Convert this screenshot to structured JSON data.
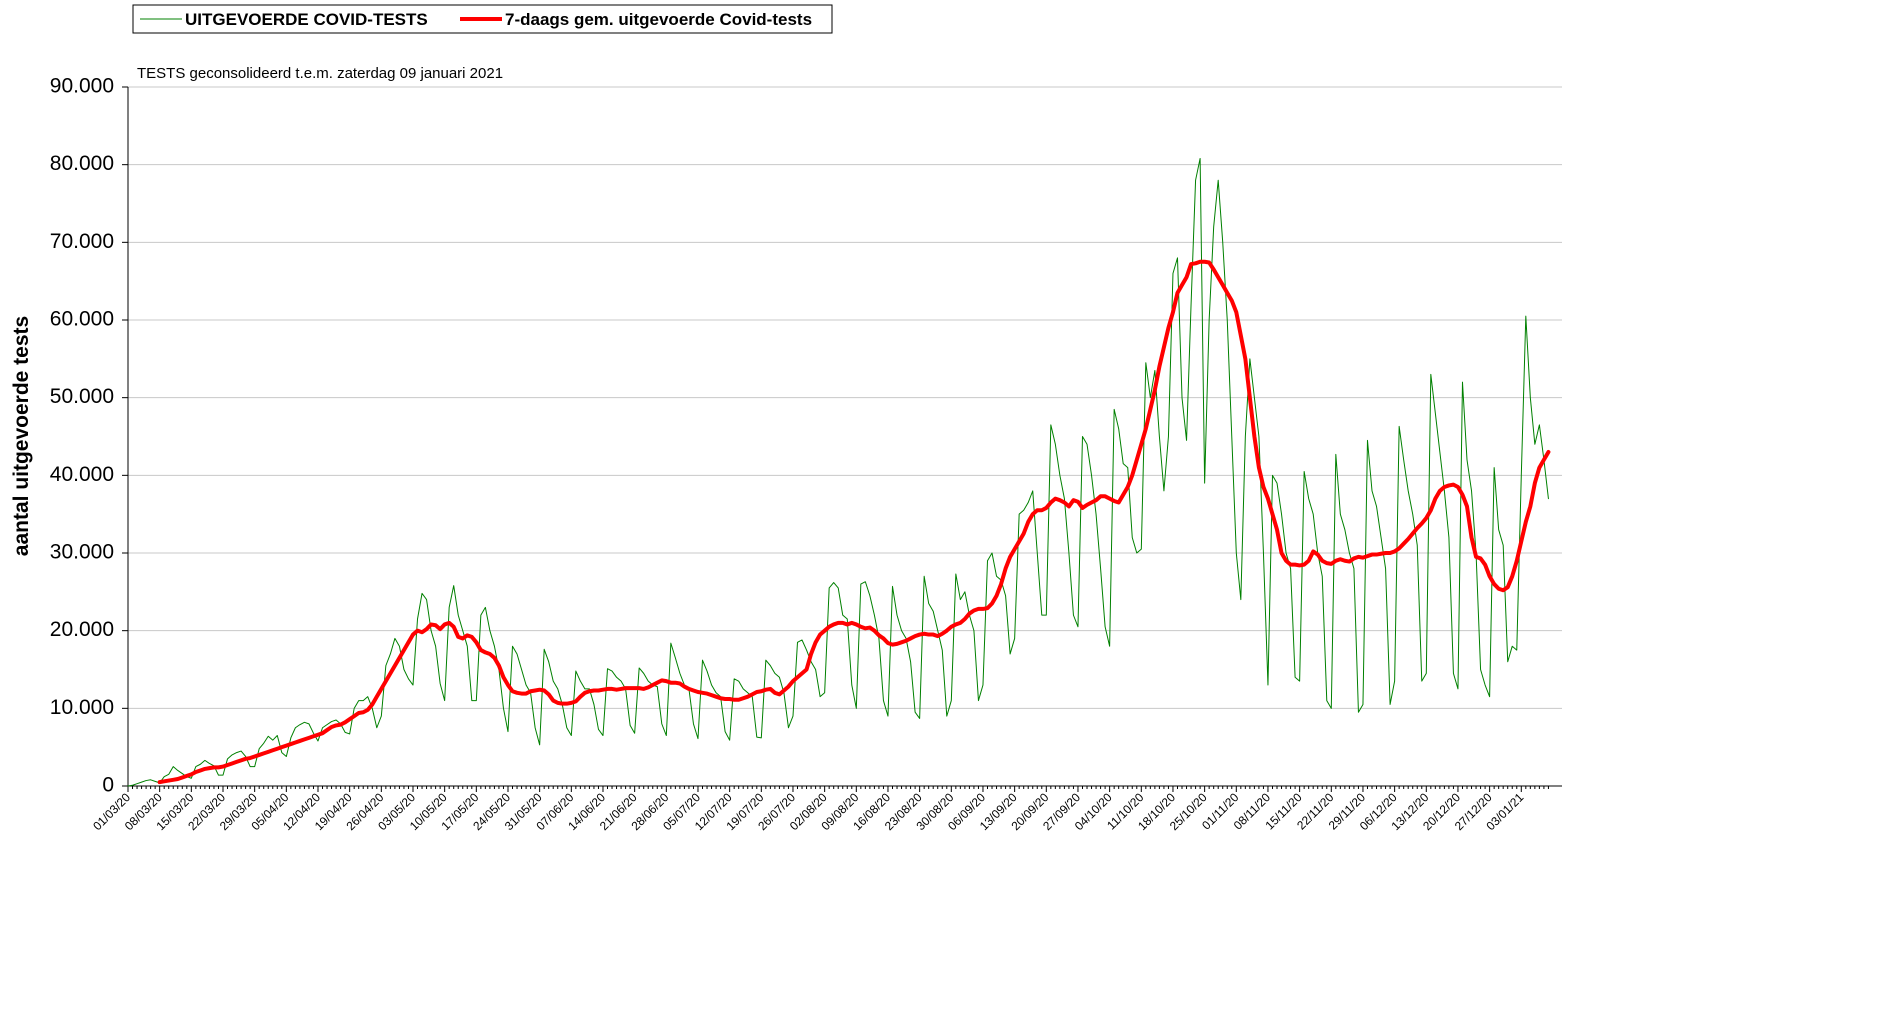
{
  "chart_data": {
    "type": "line",
    "annotation": "TESTS geconsolideerd t.e.m. zaterdag 09 januari 2021",
    "y_label": "aantal uitgevoerde tests",
    "legend": "top-left",
    "grid": true,
    "ylim": [
      0,
      90000
    ],
    "yticks": [
      0,
      {
        "value": 10000,
        "label": "10.000"
      },
      {
        "value": 20000,
        "label": "20.000"
      },
      {
        "value": 30000,
        "label": "30.000"
      },
      {
        "value": 40000,
        "label": "40.000"
      },
      {
        "value": 50000,
        "label": "50.000"
      },
      {
        "value": 60000,
        "label": "60.000"
      },
      {
        "value": 70000,
        "label": "70.000"
      },
      {
        "value": 80000,
        "label": "80.000"
      },
      {
        "value": 90000,
        "label": "90.000"
      }
    ],
    "categories": [
      "01/03/20",
      null,
      null,
      null,
      null,
      null,
      null,
      "08/03/20",
      null,
      null,
      null,
      null,
      null,
      null,
      "15/03/20",
      null,
      null,
      null,
      null,
      null,
      null,
      "22/03/20",
      null,
      null,
      null,
      null,
      null,
      null,
      "29/03/20",
      null,
      null,
      null,
      null,
      null,
      null,
      "05/04/20",
      null,
      null,
      null,
      null,
      null,
      null,
      "12/04/20",
      null,
      null,
      null,
      null,
      null,
      null,
      "19/04/20",
      null,
      null,
      null,
      null,
      null,
      null,
      "26/04/20",
      null,
      null,
      null,
      null,
      null,
      null,
      "03/05/20",
      null,
      null,
      null,
      null,
      null,
      null,
      "10/05/20",
      null,
      null,
      null,
      null,
      null,
      null,
      "17/05/20",
      null,
      null,
      null,
      null,
      null,
      null,
      "24/05/20",
      null,
      null,
      null,
      null,
      null,
      null,
      "31/05/20",
      null,
      null,
      null,
      null,
      null,
      null,
      "07/06/20",
      null,
      null,
      null,
      null,
      null,
      null,
      "14/06/20",
      null,
      null,
      null,
      null,
      null,
      null,
      "21/06/20",
      null,
      null,
      null,
      null,
      null,
      null,
      "28/06/20",
      null,
      null,
      null,
      null,
      null,
      null,
      "05/07/20",
      null,
      null,
      null,
      null,
      null,
      null,
      "12/07/20",
      null,
      null,
      null,
      null,
      null,
      null,
      "19/07/20",
      null,
      null,
      null,
      null,
      null,
      null,
      "26/07/20",
      null,
      null,
      null,
      null,
      null,
      null,
      "02/08/20",
      null,
      null,
      null,
      null,
      null,
      null,
      "09/08/20",
      null,
      null,
      null,
      null,
      null,
      null,
      "16/08/20",
      null,
      null,
      null,
      null,
      null,
      null,
      "23/08/20",
      null,
      null,
      null,
      null,
      null,
      null,
      "30/08/20",
      null,
      null,
      null,
      null,
      null,
      null,
      "06/09/20",
      null,
      null,
      null,
      null,
      null,
      null,
      "13/09/20",
      null,
      null,
      null,
      null,
      null,
      null,
      "20/09/20",
      null,
      null,
      null,
      null,
      null,
      null,
      "27/09/20",
      null,
      null,
      null,
      null,
      null,
      null,
      "04/10/20",
      null,
      null,
      null,
      null,
      null,
      null,
      "11/10/20",
      null,
      null,
      null,
      null,
      null,
      null,
      "18/10/20",
      null,
      null,
      null,
      null,
      null,
      null,
      "25/10/20",
      null,
      null,
      null,
      null,
      null,
      null,
      "01/11/20",
      null,
      null,
      null,
      null,
      null,
      null,
      "08/11/20",
      null,
      null,
      null,
      null,
      null,
      null,
      "15/11/20",
      null,
      null,
      null,
      null,
      null,
      null,
      "22/11/20",
      null,
      null,
      null,
      null,
      null,
      null,
      "29/11/20",
      null,
      null,
      null,
      null,
      null,
      null,
      "06/12/20",
      null,
      null,
      null,
      null,
      null,
      null,
      "13/12/20",
      null,
      null,
      null,
      null,
      null,
      null,
      "20/12/20",
      null,
      null,
      null,
      null,
      null,
      null,
      "27/12/20",
      null,
      null,
      null,
      null,
      null,
      null,
      "03/01/21",
      null,
      null,
      null,
      null,
      null,
      null
    ],
    "series": [
      {
        "name": "UITGEVOERDE COVID-TESTS",
        "color": "#008000",
        "width": 1,
        "values": [
          0,
          100,
          300,
          500,
          700,
          800,
          600,
          400,
          1200,
          1500,
          2500,
          2000,
          1600,
          1200,
          1000,
          2500,
          2800,
          3300,
          2900,
          2600,
          1400,
          1400,
          3500,
          4000,
          4300,
          4500,
          3800,
          2500,
          2500,
          4800,
          5500,
          6400,
          5900,
          6500,
          4300,
          3800,
          6200,
          7500,
          7900,
          8200,
          8000,
          6800,
          5800,
          7500,
          7900,
          8300,
          8500,
          8000,
          6900,
          6700,
          10000,
          11000,
          11000,
          11500,
          10000,
          7500,
          9000,
          15500,
          17000,
          19000,
          18000,
          15000,
          13800,
          13000,
          21500,
          24800,
          24000,
          20000,
          18000,
          13200,
          11000,
          23000,
          25800,
          22000,
          20000,
          18000,
          11000,
          11000,
          22000,
          23000,
          20000,
          18000,
          15000,
          10000,
          7000,
          18000,
          17000,
          15000,
          13000,
          12000,
          7500,
          5300,
          17600,
          16000,
          13500,
          12500,
          10500,
          7500,
          6500,
          14800,
          13500,
          12500,
          12500,
          10500,
          7300,
          6500,
          15100,
          14800,
          14000,
          13500,
          12500,
          7800,
          6800,
          15200,
          14500,
          13500,
          13000,
          12800,
          8000,
          6500,
          18400,
          16500,
          14500,
          13000,
          12500,
          8000,
          6100,
          16200,
          14800,
          13000,
          12000,
          11500,
          7000,
          5900,
          13800,
          13500,
          12500,
          12000,
          11500,
          6300,
          6200,
          16200,
          15500,
          14500,
          14000,
          12000,
          7500,
          9000,
          18500,
          18800,
          17500,
          16000,
          15000,
          11500,
          12000,
          25500,
          26200,
          25500,
          22000,
          21500,
          13000,
          10000,
          26000,
          26300,
          24500,
          22000,
          19000,
          11000,
          9000,
          25700,
          22000,
          20000,
          19000,
          16000,
          9500,
          8700,
          27000,
          23500,
          22500,
          20000,
          17500,
          9000,
          11000,
          27300,
          24000,
          25000,
          22000,
          20000,
          11000,
          13000,
          29000,
          30000,
          27000,
          26500,
          24500,
          17000,
          19000,
          35000,
          35500,
          36500,
          38000,
          30000,
          22000,
          22000,
          46500,
          44000,
          40000,
          37000,
          30000,
          22000,
          20500,
          45000,
          44000,
          40000,
          35000,
          28000,
          20500,
          18000,
          48500,
          46000,
          41500,
          41000,
          32000,
          30000,
          30500,
          54500,
          50000,
          53500,
          45000,
          38000,
          45000,
          66000,
          68000,
          50000,
          44500,
          62000,
          78000,
          80800,
          39000,
          60000,
          72000,
          78000,
          70000,
          60000,
          45000,
          30000,
          24000,
          45000,
          55000,
          50000,
          45000,
          30000,
          13000,
          40000,
          39000,
          35000,
          30000,
          28000,
          14000,
          13500,
          40500,
          37000,
          35000,
          30000,
          27000,
          11000,
          10000,
          42700,
          35000,
          33000,
          30000,
          28000,
          9500,
          10500,
          44500,
          38000,
          36000,
          32000,
          28000,
          10500,
          13500,
          46300,
          42000,
          38000,
          35000,
          31000,
          13500,
          14500,
          53000,
          48000,
          43000,
          38000,
          32000,
          14500,
          12500,
          52000,
          42000,
          38000,
          30000,
          15000,
          13000,
          11500,
          41000,
          33000,
          31000,
          16000,
          18000,
          17500,
          40000,
          60500,
          50000,
          44000,
          46500,
          42000,
          37000
        ]
      },
      {
        "name": "7-daags gem. uitgevoerde Covid-tests",
        "color": "#ff0000",
        "width": 4,
        "values": [
          null,
          null,
          null,
          null,
          null,
          null,
          null,
          500,
          600,
          700,
          800,
          900,
          1100,
          1300,
          1500,
          1800,
          2000,
          2200,
          2300,
          2400,
          2400,
          2500,
          2700,
          2900,
          3100,
          3300,
          3500,
          3600,
          3800,
          4000,
          4200,
          4400,
          4600,
          4800,
          5000,
          5200,
          5400,
          5600,
          5800,
          6000,
          6200,
          6400,
          6600,
          6800,
          7200,
          7600,
          7800,
          7900,
          8200,
          8600,
          9000,
          9400,
          9500,
          9800,
          10500,
          11500,
          12500,
          13500,
          14500,
          15500,
          16500,
          17500,
          18500,
          19500,
          20000,
          19800,
          20200,
          20800,
          20700,
          20200,
          20800,
          21000,
          20500,
          19200,
          19000,
          19400,
          19200,
          18500,
          17500,
          17200,
          17000,
          16500,
          15500,
          14000,
          13000,
          12200,
          12000,
          11900,
          11900,
          12200,
          12300,
          12400,
          12300,
          11800,
          11000,
          10700,
          10600,
          10600,
          10700,
          10900,
          11500,
          12000,
          12200,
          12300,
          12300,
          12400,
          12500,
          12500,
          12400,
          12500,
          12600,
          12600,
          12600,
          12600,
          12500,
          12700,
          13000,
          13300,
          13600,
          13500,
          13300,
          13300,
          13200,
          12800,
          12500,
          12300,
          12100,
          12000,
          11900,
          11700,
          11500,
          11300,
          11200,
          11200,
          11100,
          11100,
          11300,
          11500,
          11800,
          12100,
          12200,
          12400,
          12500,
          12000,
          11800,
          12300,
          12800,
          13500,
          14000,
          14500,
          15000,
          17000,
          18500,
          19500,
          20000,
          20500,
          20800,
          21000,
          21000,
          20800,
          21000,
          20800,
          20500,
          20300,
          20400,
          20000,
          19400,
          19000,
          18400,
          18200,
          18300,
          18500,
          18700,
          19000,
          19300,
          19500,
          19600,
          19500,
          19500,
          19300,
          19600,
          20000,
          20500,
          20800,
          21000,
          21500,
          22200,
          22600,
          22800,
          22800,
          22900,
          23500,
          24500,
          26000,
          28000,
          29500,
          30500,
          31500,
          32500,
          34000,
          35000,
          35500,
          35500,
          35800,
          36500,
          37000,
          36800,
          36500,
          36000,
          36800,
          36600,
          35800,
          36200,
          36500,
          36800,
          37300,
          37300,
          37000,
          36700,
          36500,
          37500,
          38500,
          40000,
          42000,
          44000,
          46000,
          48500,
          51000,
          54000,
          56500,
          59000,
          61000,
          63500,
          64500,
          65500,
          67200,
          67300,
          67500,
          67500,
          67400,
          66500,
          65500,
          64500,
          63500,
          62500,
          61000,
          58000,
          55000,
          50000,
          45000,
          41000,
          38500,
          37000,
          35000,
          33000,
          30000,
          29000,
          28500,
          28500,
          28400,
          28500,
          29000,
          30200,
          29800,
          29000,
          28700,
          28600,
          29000,
          29200,
          29000,
          28900,
          29300,
          29500,
          29400,
          29600,
          29800,
          29800,
          29900,
          30000,
          30000,
          30200,
          30600,
          31200,
          31800,
          32500,
          33200,
          33800,
          34500,
          35500,
          37000,
          38000,
          38500,
          38700,
          38800,
          38500,
          37500,
          36000,
          32000,
          29500,
          29300,
          28500,
          27000,
          26000,
          25400,
          25200,
          25600,
          27000,
          29000,
          31500,
          34000,
          36000,
          39000,
          41000,
          42000,
          43000
        ]
      }
    ]
  }
}
